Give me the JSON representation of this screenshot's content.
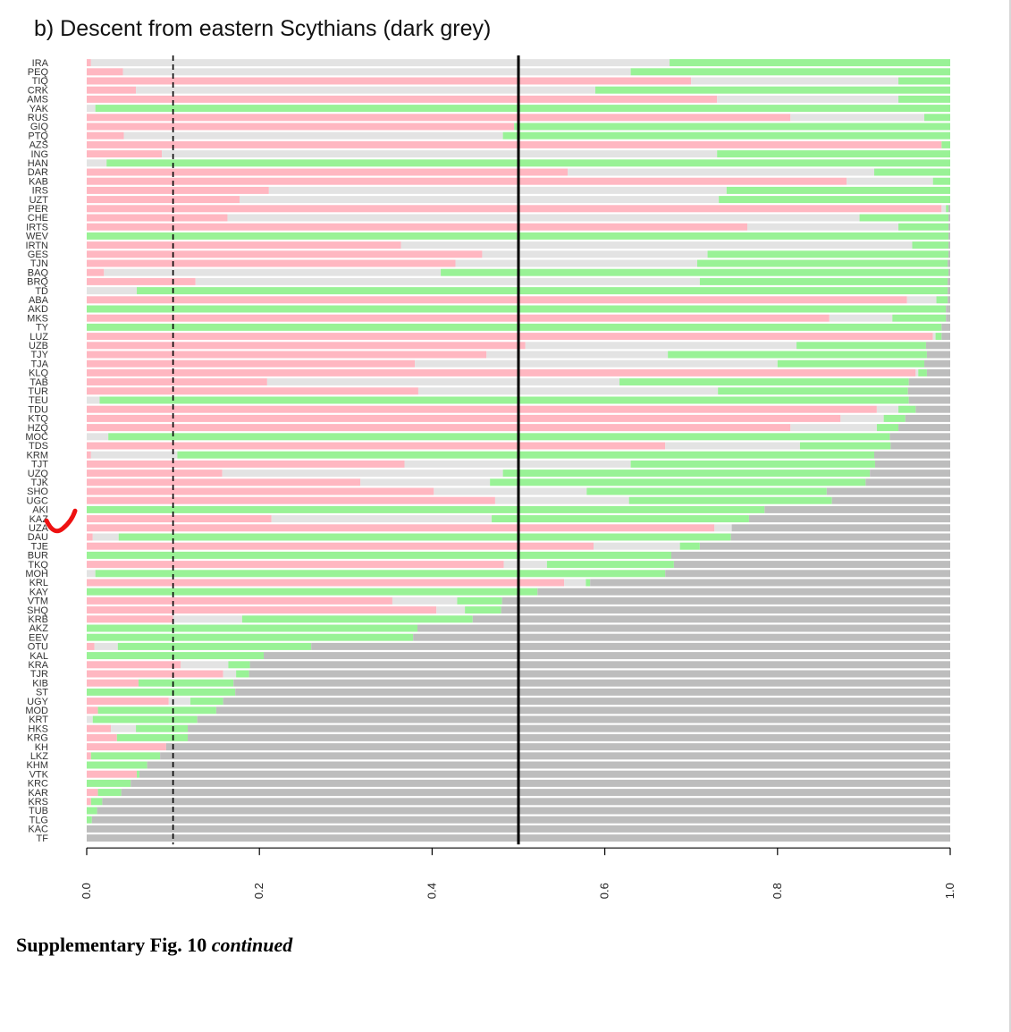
{
  "chart_data": {
    "type": "bar",
    "orientation": "horizontal",
    "stacked": true,
    "title": "b) Descent from eastern Scythians (dark grey)",
    "xlim": [
      0,
      1
    ],
    "x_ticks": [
      "0.0",
      "0.2",
      "0.4",
      "0.6",
      "0.8",
      "1.0"
    ],
    "x_tick_values": [
      0,
      0.2,
      0.4,
      0.6,
      0.8,
      1.0
    ],
    "reference_lines": [
      {
        "value": 0.1,
        "style": "dashed"
      },
      {
        "value": 0.5,
        "style": "solid"
      }
    ],
    "colors": {
      "pink": "#ffb7c1",
      "lightgrey": "#e3e3e3",
      "green": "#99f296",
      "darkgrey": "#bdbdbd"
    },
    "segment_order": [
      "pink",
      "lightgrey",
      "green",
      "darkgrey"
    ],
    "categories": [
      "IRA",
      "PEQ",
      "TIQ",
      "CRK",
      "AMS",
      "YAK",
      "RUS",
      "GIQ",
      "PTQ",
      "AZS",
      "ING",
      "HAN",
      "DAR",
      "KAB",
      "IRS",
      "UZT",
      "PER",
      "CHE",
      "IRTS",
      "WEV",
      "IRTN",
      "GES",
      "TJN",
      "BAQ",
      "BRQ",
      "TD",
      "ABA",
      "AKD",
      "MKS",
      "TY",
      "LUZ",
      "UZB",
      "TJY",
      "TJA",
      "KLQ",
      "TAB",
      "TUR",
      "TEU",
      "TDU",
      "KTQ",
      "HZQ",
      "MOC",
      "TDS",
      "KRM",
      "TJT",
      "UZQ",
      "TJK",
      "SHO",
      "UGC",
      "AKI",
      "KAZ",
      "UZA",
      "DAU",
      "TJE",
      "BUR",
      "TKQ",
      "MOH",
      "KRL",
      "KAY",
      "VTM",
      "SHQ",
      "KRB",
      "AKZ",
      "EEV",
      "OTU",
      "KAL",
      "KRA",
      "TJR",
      "KIB",
      "ST",
      "UGY",
      "MOD",
      "KRT",
      "HKS",
      "KRG",
      "KH",
      "LKZ",
      "KHM",
      "VTK",
      "KRC",
      "KAR",
      "KRS",
      "TUB",
      "TLG",
      "KAC",
      "TF"
    ],
    "series": [
      {
        "color": "pink",
        "values": [
          0.005,
          0.042,
          0.7,
          0.057,
          0.73,
          0.0,
          0.815,
          0.495,
          0.043,
          0.99,
          0.087,
          0.0,
          0.557,
          0.88,
          0.211,
          0.177,
          0.99,
          0.163,
          0.765,
          0.0,
          0.364,
          0.458,
          0.427,
          0.02,
          0.126,
          0.0,
          0.95,
          0.0,
          0.86,
          0.0,
          0.98,
          0.508,
          0.463,
          0.38,
          0.96,
          0.209,
          0.384,
          0.0,
          0.915,
          0.873,
          0.815,
          0.0,
          0.67,
          0.005,
          0.368,
          0.157,
          0.317,
          0.402,
          0.473,
          0.0,
          0.214,
          0.727,
          0.007,
          0.587,
          0.0,
          0.483,
          0.0,
          0.553,
          0.0,
          0.354,
          0.405,
          0.1,
          0.0,
          0.0,
          0.009,
          0.0,
          0.109,
          0.158,
          0.06,
          0.0,
          0.095,
          0.013,
          0.0,
          0.028,
          0.035,
          0.092,
          0.005,
          0.0,
          0.058,
          0.0,
          0.013,
          0.005,
          0.0,
          0.0,
          0.0,
          0.0
        ]
      },
      {
        "color": "lightgrey",
        "values": [
          0.67,
          0.588,
          0.24,
          0.532,
          0.21,
          0.01,
          0.155,
          0.0,
          0.439,
          0.0,
          0.643,
          0.023,
          0.355,
          0.1,
          0.53,
          0.555,
          0.005,
          0.732,
          0.175,
          0.0,
          0.592,
          0.261,
          0.28,
          0.39,
          0.584,
          0.058,
          0.034,
          0.0,
          0.073,
          0.0,
          0.003,
          0.314,
          0.21,
          0.42,
          0.003,
          0.408,
          0.347,
          0.015,
          0.025,
          0.05,
          0.1,
          0.025,
          0.156,
          0.1,
          0.262,
          0.325,
          0.15,
          0.177,
          0.155,
          0.0,
          0.255,
          0.02,
          0.03,
          0.1,
          0.0,
          0.05,
          0.01,
          0.025,
          0.0,
          0.075,
          0.033,
          0.08,
          0.0,
          0.0,
          0.027,
          0.0,
          0.055,
          0.015,
          0.0,
          0.0,
          0.025,
          0.0,
          0.007,
          0.029,
          0.0,
          0.0,
          0.0,
          0.0,
          0.0,
          0.0,
          0.0,
          0.0,
          0.0,
          0.0,
          0.0,
          0.0
        ]
      },
      {
        "color": "green",
        "values": [
          0.325,
          0.37,
          0.06,
          0.411,
          0.06,
          0.99,
          0.03,
          0.505,
          0.518,
          0.01,
          0.27,
          0.977,
          0.088,
          0.02,
          0.259,
          0.268,
          0.003,
          0.103,
          0.058,
          0.998,
          0.042,
          0.279,
          0.29,
          0.588,
          0.287,
          0.939,
          0.013,
          0.995,
          0.062,
          0.99,
          0.007,
          0.15,
          0.3,
          0.17,
          0.01,
          0.335,
          0.22,
          0.937,
          0.02,
          0.025,
          0.025,
          0.905,
          0.105,
          0.807,
          0.283,
          0.425,
          0.435,
          0.278,
          0.235,
          0.785,
          0.298,
          0.0,
          0.709,
          0.023,
          0.677,
          0.147,
          0.66,
          0.005,
          0.522,
          0.052,
          0.042,
          0.267,
          0.383,
          0.378,
          0.224,
          0.205,
          0.025,
          0.015,
          0.11,
          0.172,
          0.038,
          0.137,
          0.121,
          0.06,
          0.082,
          0.0,
          0.08,
          0.07,
          0.003,
          0.051,
          0.027,
          0.013,
          0.012,
          0.006,
          0.0,
          0.0
        ]
      },
      {
        "color": "darkgrey",
        "values": [
          0,
          0,
          0,
          0,
          0,
          0,
          0,
          0,
          0,
          0,
          0,
          0,
          0,
          0,
          0,
          0,
          0.002,
          0.002,
          0.002,
          0.002,
          0.002,
          0.002,
          0.003,
          0.002,
          0.003,
          0.003,
          0.003,
          0.005,
          0.005,
          0.01,
          0.01,
          0.028,
          0.027,
          0.03,
          0.027,
          0.048,
          0.049,
          0.048,
          0.04,
          0.052,
          0.06,
          0.07,
          0.069,
          0.088,
          0.087,
          0.093,
          0.098,
          0.143,
          0.137,
          0.215,
          0.233,
          0.253,
          0.254,
          0.29,
          0.323,
          0.32,
          0.33,
          0.417,
          0.478,
          0.519,
          0.52,
          0.553,
          0.617,
          0.622,
          0.74,
          0.795,
          0.811,
          0.812,
          0.83,
          0.828,
          0.842,
          0.85,
          0.872,
          0.883,
          0.883,
          0.908,
          0.915,
          0.93,
          0.939,
          0.949,
          0.96,
          0.982,
          0.988,
          0.994,
          1.0,
          1.0
        ]
      }
    ]
  },
  "caption": {
    "label": "Supplementary Fig. 10",
    "suffix": "continued"
  },
  "annotation": {
    "color": "#ee1111",
    "points_to": "UZA"
  }
}
